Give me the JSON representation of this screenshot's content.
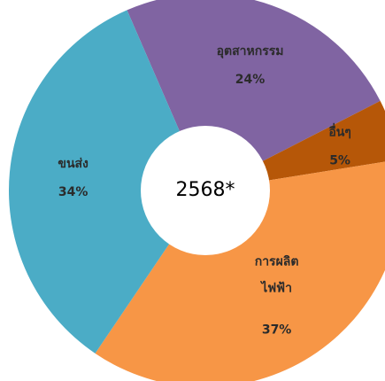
{
  "chart_data": {
    "type": "donut",
    "center_label": "2568*",
    "categories": [
      "อุตสาหกรรม",
      "อื่นๆ",
      "การผลิต\nไฟฟ้า",
      "ขนส่ง"
    ],
    "values": [
      24,
      5,
      37,
      34
    ],
    "value_labels": [
      "24%",
      "5%",
      "37%",
      "34%"
    ],
    "colors": [
      "#8064a2",
      "#b65708",
      "#f79646",
      "#4bacc6"
    ]
  }
}
